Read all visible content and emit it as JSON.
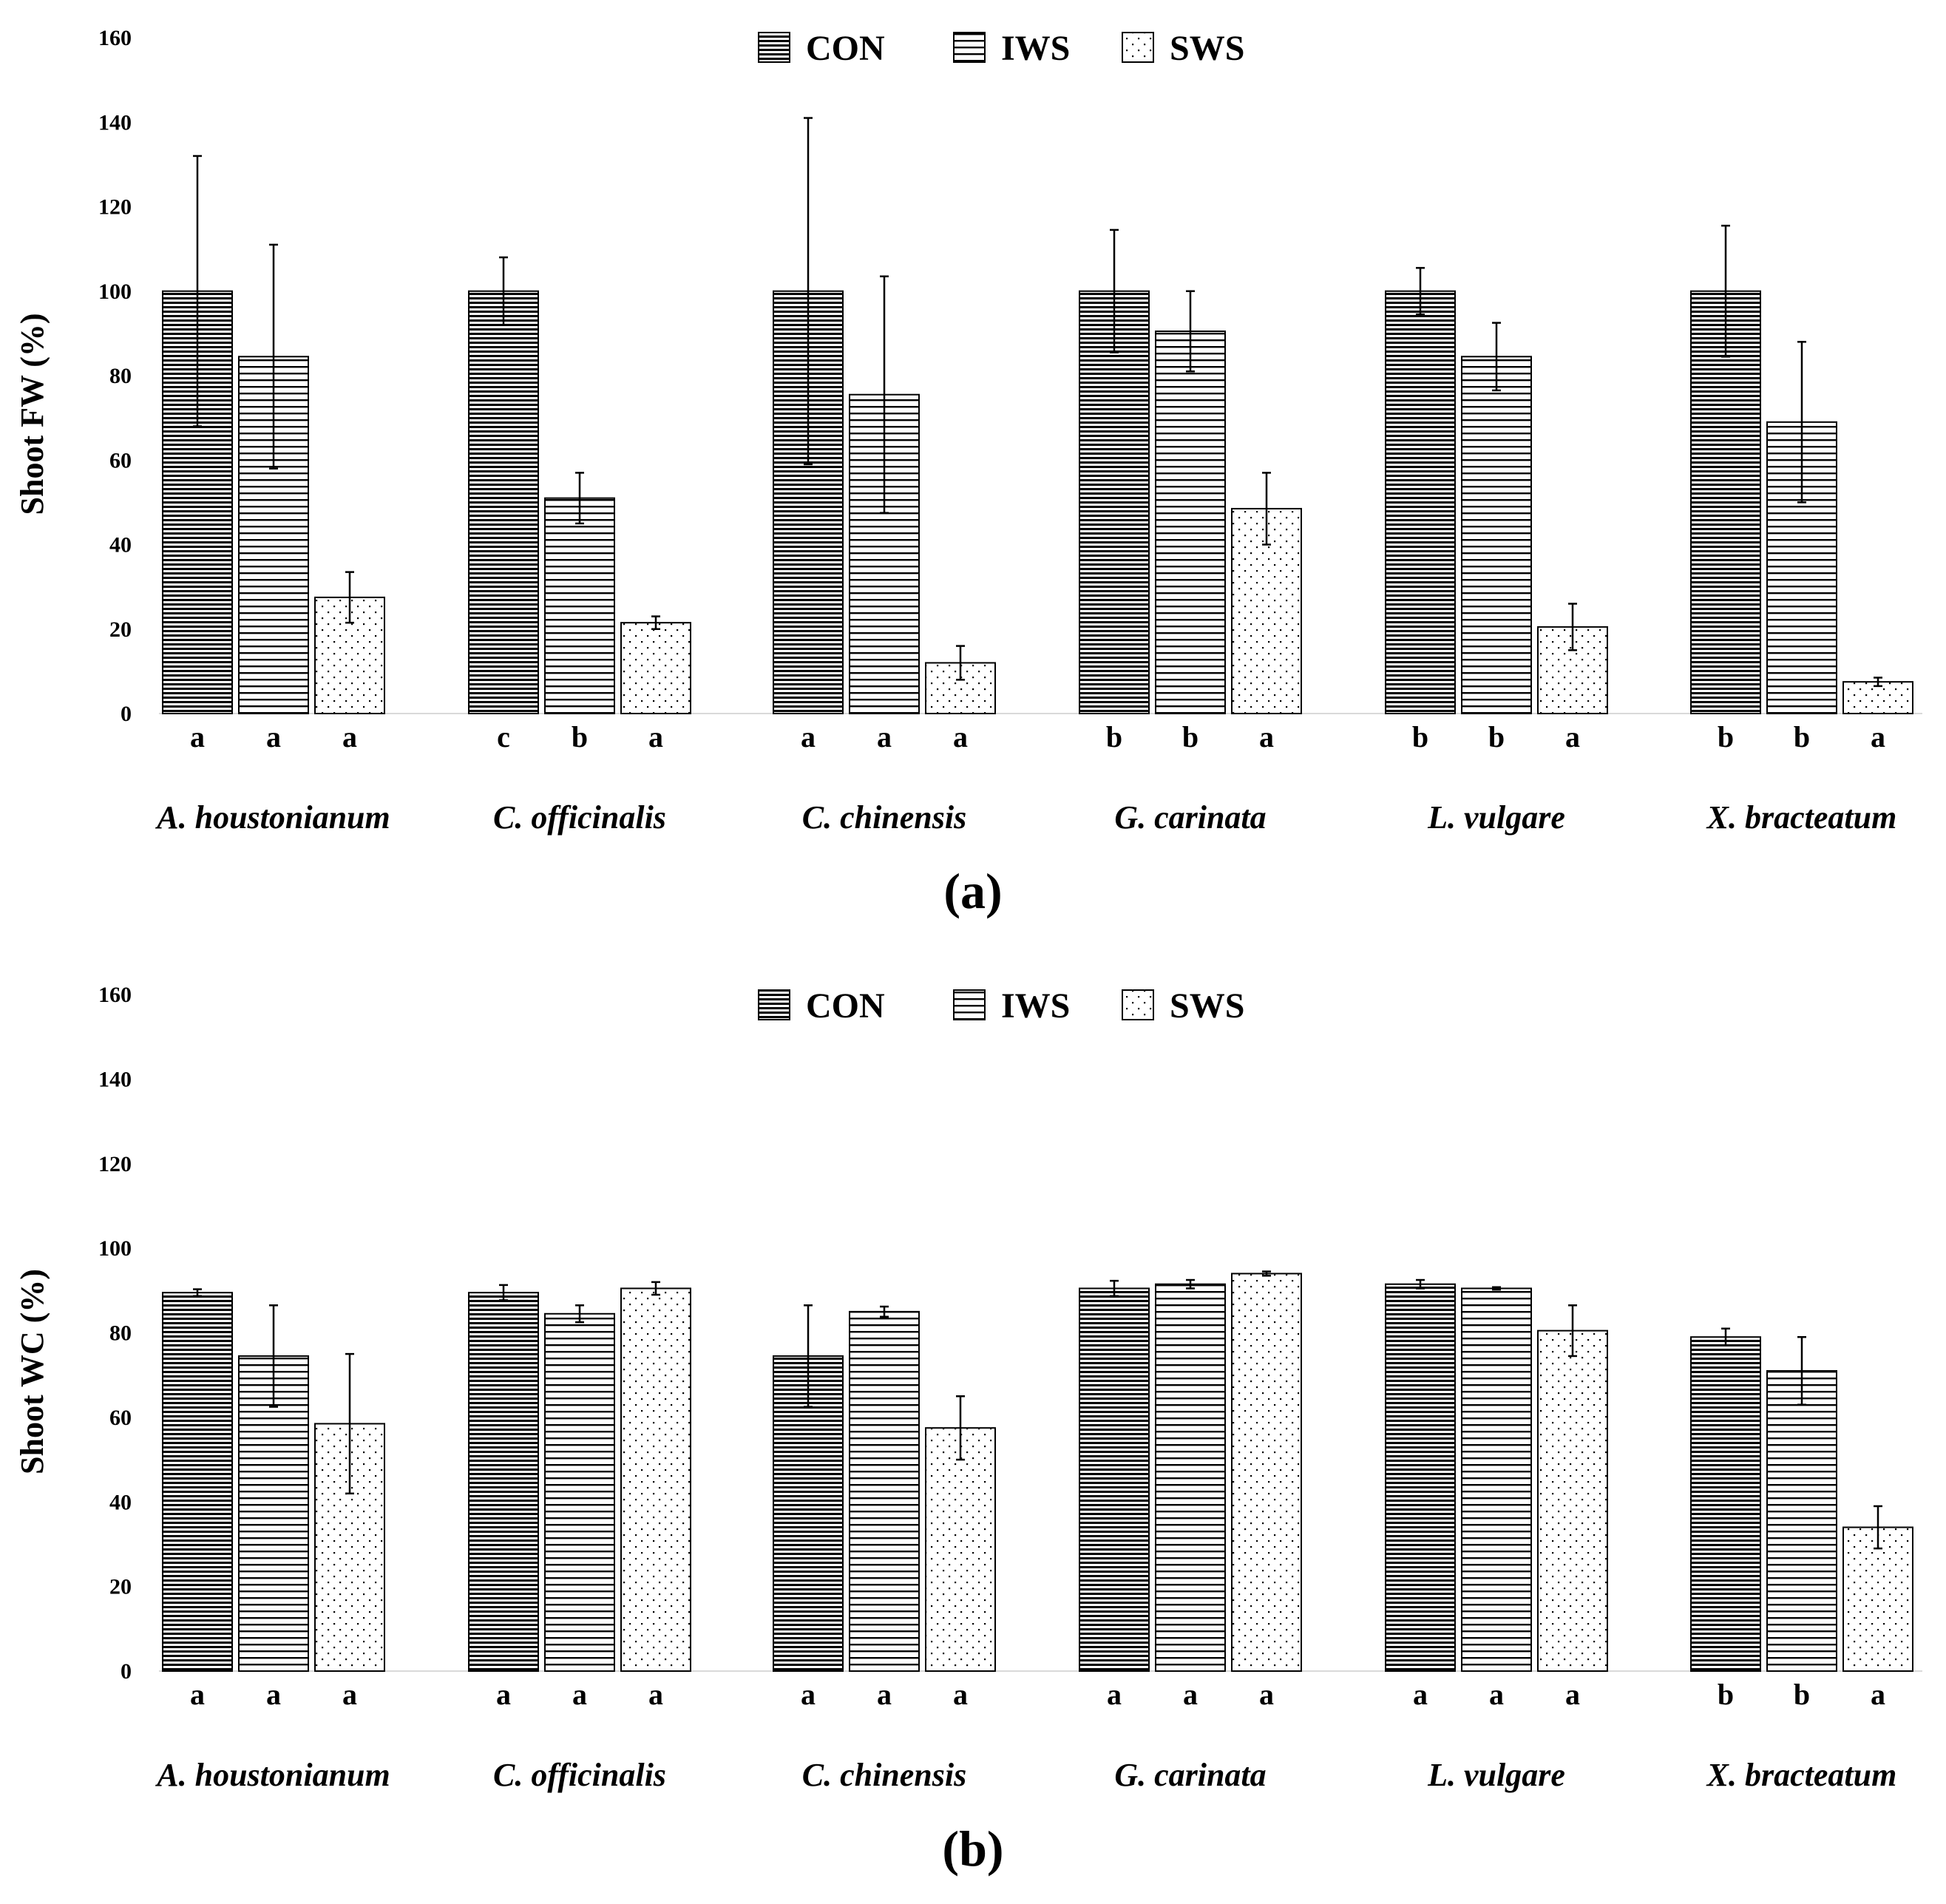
{
  "legend": {
    "items": [
      {
        "label": "CON",
        "pattern": "con"
      },
      {
        "label": "IWS",
        "pattern": "iws"
      },
      {
        "label": "SWS",
        "pattern": "sws"
      }
    ]
  },
  "chart_data": [
    {
      "type": "bar",
      "panel_label": "(a)",
      "panel_letter": "a",
      "title": "",
      "xlabel": "",
      "ylabel": "Shoot FW (%)",
      "ylim": [
        0,
        160
      ],
      "yticks": [
        0,
        20,
        40,
        60,
        80,
        100,
        120,
        140,
        160
      ],
      "grid": false,
      "legend_position": "top-center",
      "categories": [
        "A. houstonianum",
        "C. officinalis",
        "C. chinensis",
        "G. carinata",
        "L. vulgare",
        "X. bracteatum"
      ],
      "series": [
        {
          "name": "CON",
          "values": [
            100,
            100,
            100,
            100,
            100,
            100
          ],
          "errors": [
            32,
            8,
            41,
            14.5,
            5.5,
            15.5
          ],
          "letters": [
            "a",
            "c",
            "a",
            "b",
            "b",
            "b"
          ]
        },
        {
          "name": "IWS",
          "values": [
            84.5,
            51,
            75.5,
            90.5,
            84.5,
            69
          ],
          "errors": [
            26.5,
            6,
            28,
            9.5,
            8,
            19
          ],
          "letters": [
            "a",
            "b",
            "a",
            "b",
            "b",
            "b"
          ]
        },
        {
          "name": "SWS",
          "values": [
            27.5,
            21.5,
            12,
            48.5,
            20.5,
            7.5
          ],
          "errors": [
            6,
            1.5,
            4,
            8.5,
            5.5,
            1
          ],
          "letters": [
            "a",
            "a",
            "a",
            "a",
            "a",
            "a"
          ]
        }
      ]
    },
    {
      "type": "bar",
      "panel_label": "(b)",
      "panel_letter": "b",
      "title": "",
      "xlabel": "",
      "ylabel": "Shoot WC (%)",
      "ylim": [
        0,
        160
      ],
      "yticks": [
        0,
        20,
        40,
        60,
        80,
        100,
        120,
        140,
        160
      ],
      "grid": false,
      "legend_position": "top-center",
      "categories": [
        "A. houstonianum",
        "C. officinalis",
        "C. chinensis",
        "G. carinata",
        "L. vulgare",
        "X. bracteatum"
      ],
      "series": [
        {
          "name": "CON",
          "values": [
            89.5,
            89.5,
            74.5,
            90.5,
            91.5,
            79
          ],
          "errors": [
            0.8,
            1.8,
            12,
            1.8,
            1,
            2
          ],
          "letters": [
            "a",
            "a",
            "a",
            "a",
            "a",
            "b"
          ]
        },
        {
          "name": "IWS",
          "values": [
            74.5,
            84.5,
            85,
            91.5,
            90.5,
            71
          ],
          "errors": [
            12,
            2,
            1.2,
            1,
            0.3,
            8
          ],
          "letters": [
            "a",
            "a",
            "a",
            "a",
            "a",
            "b"
          ]
        },
        {
          "name": "SWS",
          "values": [
            58.5,
            90.5,
            57.5,
            94,
            80.5,
            34
          ],
          "errors": [
            16.5,
            1.5,
            7.5,
            0.5,
            6,
            5
          ],
          "letters": [
            "a",
            "a",
            "a",
            "a",
            "a",
            "a"
          ]
        }
      ]
    }
  ]
}
